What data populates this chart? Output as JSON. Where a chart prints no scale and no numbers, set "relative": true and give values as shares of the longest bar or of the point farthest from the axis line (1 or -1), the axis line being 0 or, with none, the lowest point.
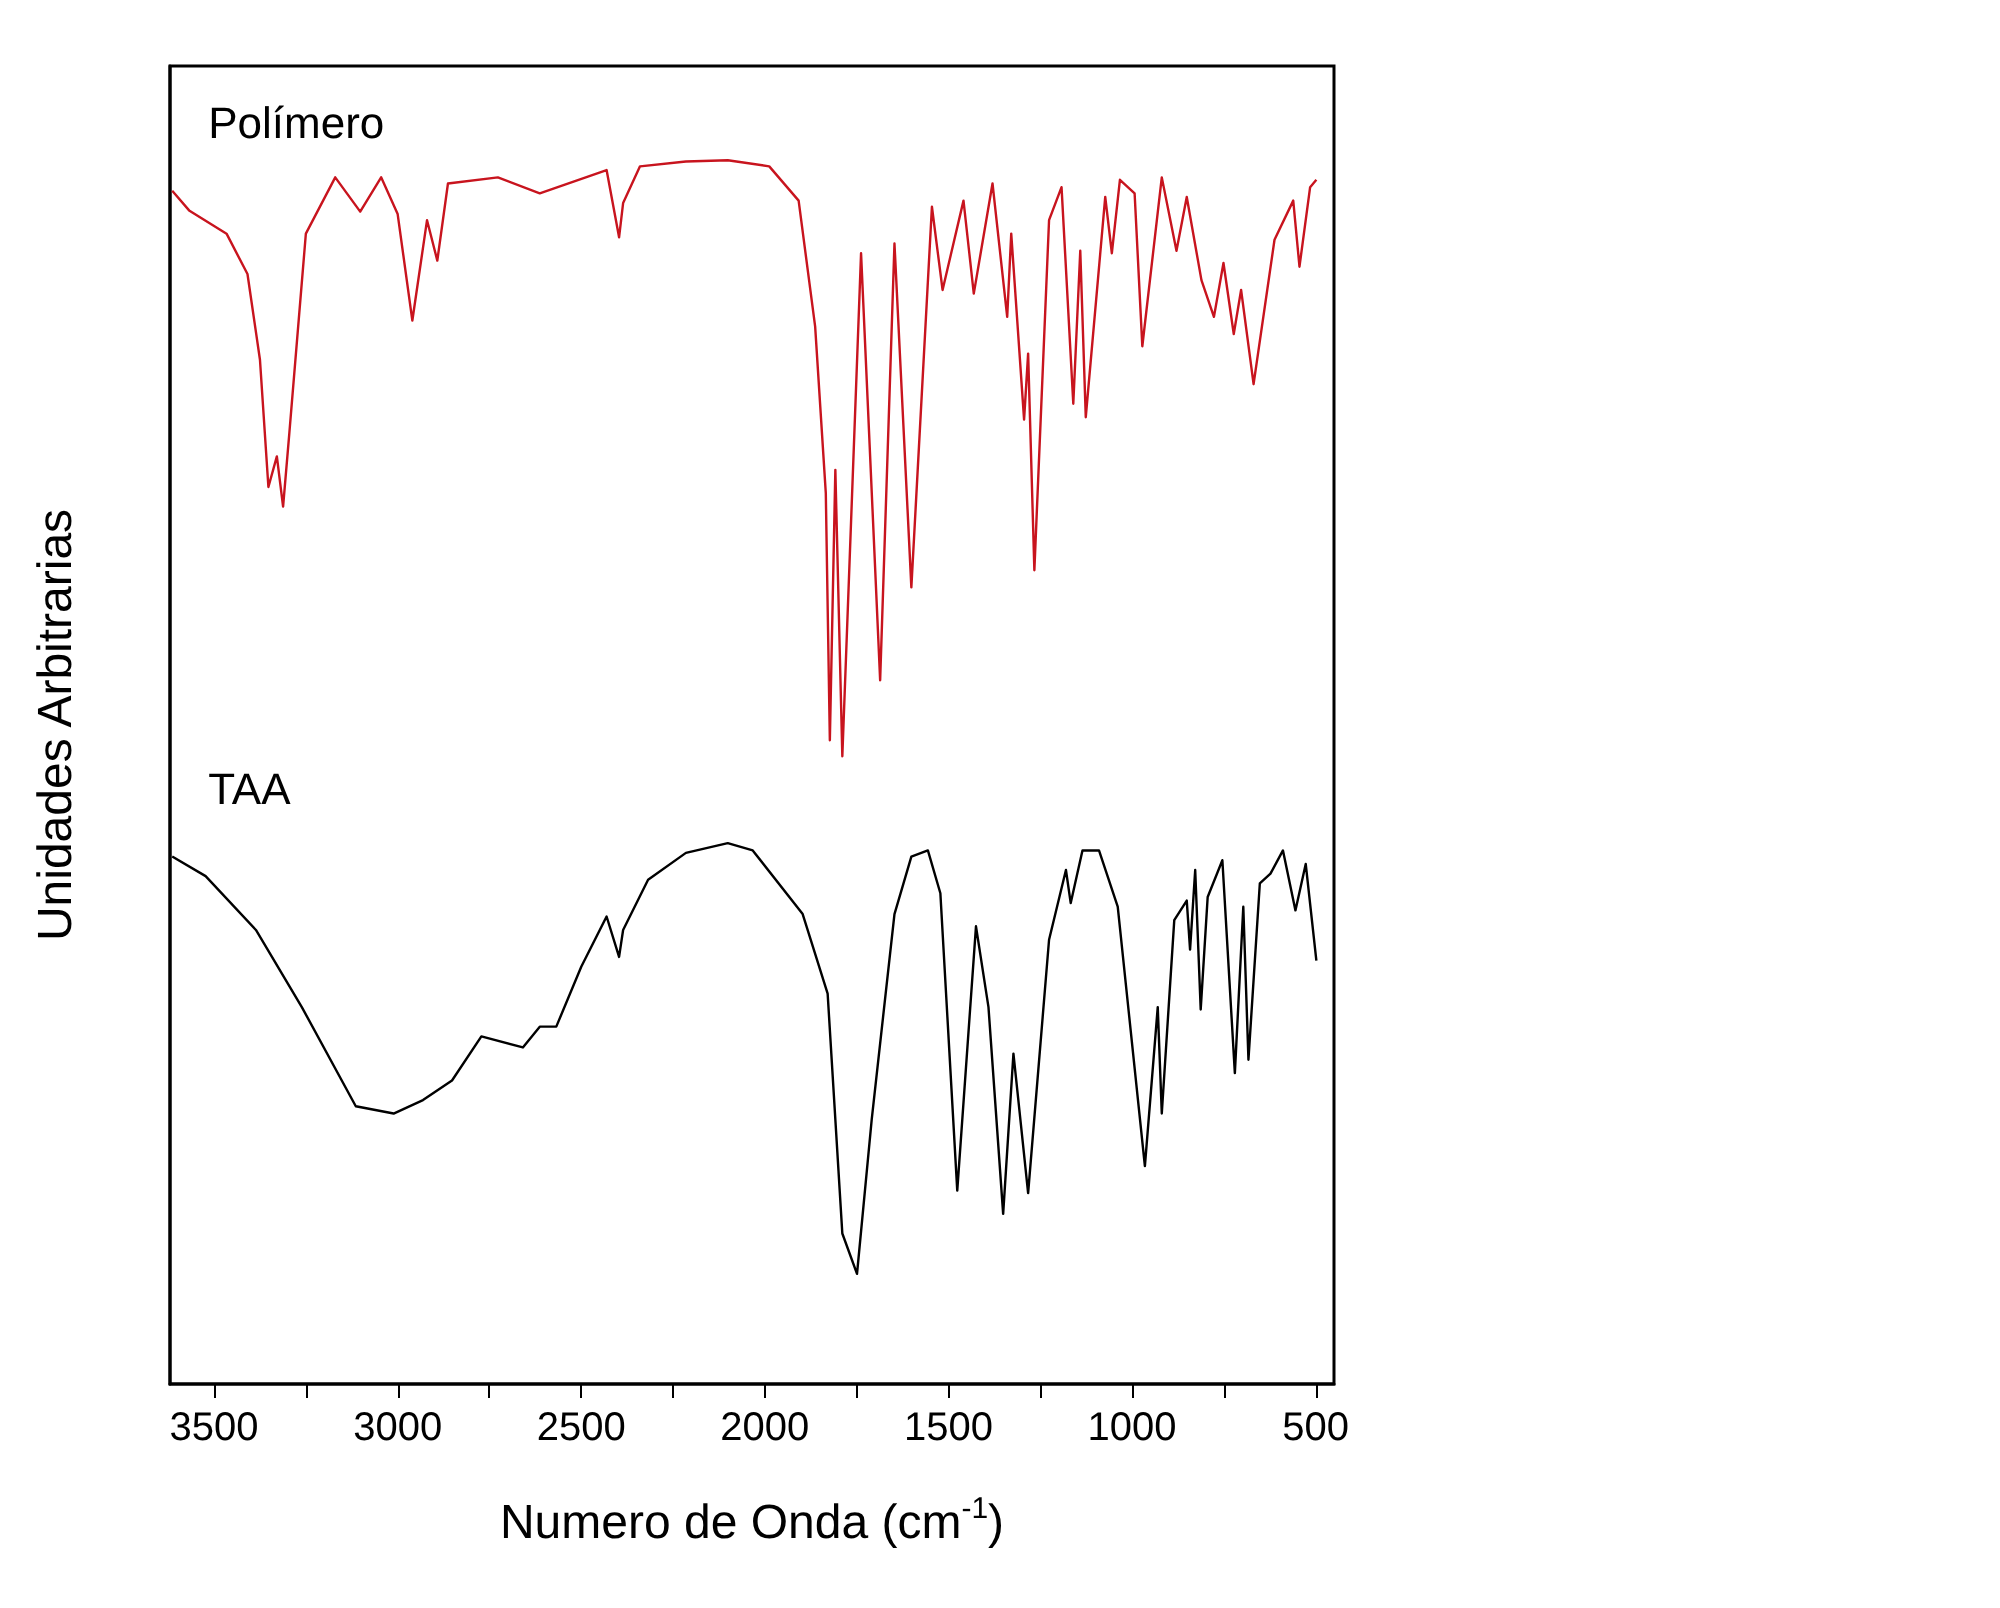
{
  "chart_data": {
    "type": "line",
    "xlabel": "Numero de Onda (cm$^{-1}$)",
    "ylabel": "Unidades Arbitrarias",
    "relative": true,
    "xlim": [
      3620,
      450
    ],
    "xticks": [
      3500,
      {
        "value": 3250,
        "label": null
      },
      3000,
      {
        "value": 2750,
        "label": null
      },
      2500,
      {
        "value": 2250,
        "label": null
      },
      2000,
      {
        "value": 1750,
        "label": null
      },
      1500,
      {
        "value": 1250,
        "label": null
      },
      1000,
      {
        "value": 750,
        "label": null
      },
      500
    ],
    "series": [
      {
        "name": "Polímero",
        "color": "#c8141e",
        "x": [
          3614,
          3568,
          3466,
          3409,
          3375,
          3352,
          3329,
          3312,
          3295,
          3250,
          3170,
          3102,
          3045,
          3000,
          2960,
          2920,
          2892,
          2863,
          2727,
          2613,
          2431,
          2397,
          2386,
          2340,
          2215,
          2101,
          1988,
          1908,
          1863,
          1834,
          1823,
          1808,
          1789,
          1738,
          1686,
          1647,
          1601,
          1545,
          1516,
          1459,
          1431,
          1380,
          1340,
          1329,
          1294,
          1283,
          1266,
          1226,
          1192,
          1160,
          1141,
          1126,
          1073,
          1055,
          1033,
          993,
          972,
          919,
          879,
          851,
          811,
          777,
          751,
          723,
          703,
          669,
          612,
          561,
          544,
          515,
          498
        ],
        "values": [
          0.975,
          0.959,
          0.94,
          0.907,
          0.837,
          0.733,
          0.758,
          0.717,
          0.777,
          0.94,
          0.986,
          0.958,
          0.986,
          0.956,
          0.869,
          0.951,
          0.918,
          0.981,
          0.986,
          0.973,
          0.992,
          0.937,
          0.965,
          0.995,
          0.999,
          1,
          0.995,
          0.967,
          0.864,
          0.728,
          0.526,
          0.747,
          0.513,
          0.924,
          0.575,
          0.932,
          0.651,
          0.962,
          0.894,
          0.967,
          0.891,
          0.981,
          0.872,
          0.94,
          0.788,
          0.842,
          0.665,
          0.951,
          0.978,
          0.801,
          0.926,
          0.79,
          0.97,
          0.924,
          0.984,
          0.973,
          0.848,
          0.986,
          0.926,
          0.97,
          0.902,
          0.872,
          0.916,
          0.858,
          0.894,
          0.817,
          0.935,
          0.967,
          0.913,
          0.978,
          0.984
        ]
      },
      {
        "name": "TAA",
        "color": "#000000",
        "x": [
          3614,
          3523,
          3386,
          3261,
          3114,
          3011,
          2931,
          2852,
          2772,
          2659,
          2613,
          2568,
          2500,
          2431,
          2397,
          2386,
          2318,
          2215,
          2101,
          2033,
          1897,
          1829,
          1789,
          1749,
          1709,
          1647,
          1601,
          1556,
          1522,
          1476,
          1425,
          1391,
          1351,
          1323,
          1283,
          1226,
          1180,
          1167,
          1135,
          1090,
          1039,
          965,
          930,
          919,
          885,
          851,
          842,
          828,
          813,
          794,
          754,
          720,
          697,
          683,
          652,
          623,
          589,
          555,
          527,
          498
        ],
        "values": [
          0.431,
          0.415,
          0.371,
          0.308,
          0.227,
          0.221,
          0.232,
          0.248,
          0.284,
          0.275,
          0.292,
          0.292,
          0.341,
          0.382,
          0.349,
          0.371,
          0.412,
          0.434,
          0.442,
          0.436,
          0.384,
          0.319,
          0.123,
          0.09,
          0.216,
          0.384,
          0.431,
          0.436,
          0.401,
          0.158,
          0.374,
          0.308,
          0.139,
          0.27,
          0.156,
          0.363,
          0.42,
          0.393,
          0.436,
          0.436,
          0.39,
          0.178,
          0.308,
          0.221,
          0.379,
          0.395,
          0.355,
          0.42,
          0.306,
          0.398,
          0.428,
          0.254,
          0.39,
          0.265,
          0.409,
          0.417,
          0.436,
          0.387,
          0.425,
          0.346
        ]
      }
    ]
  }
}
